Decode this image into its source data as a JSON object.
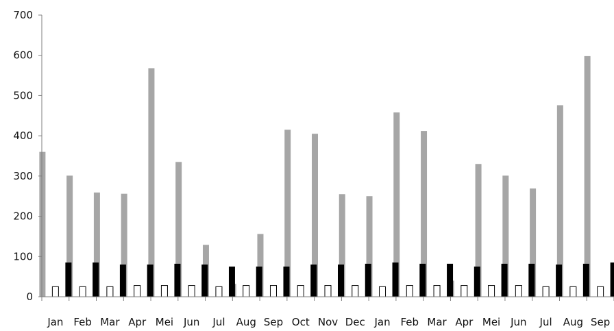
{
  "chart_data": {
    "type": "bar",
    "title": "",
    "xlabel": "",
    "ylabel": "",
    "ylim": [
      0,
      700
    ],
    "yticks": [
      0,
      100,
      200,
      300,
      400,
      500,
      600,
      700
    ],
    "grid": false,
    "legend": "none",
    "categories": [
      "Jan",
      "Feb",
      "Mar",
      "Apr",
      "Mei",
      "Jun",
      "Jul",
      "Aug",
      "Sep",
      "Oct",
      "Nov",
      "Dec",
      "Jan",
      "Feb",
      "Mar",
      "Apr",
      "Mei",
      "Jun",
      "Jul",
      "Aug",
      "Sep"
    ],
    "series": [
      {
        "color": "#a6a6a6",
        "style": "solid",
        "values": [
          360,
          301,
          259,
          256,
          568,
          335,
          129,
          32,
          156,
          415,
          405,
          255,
          250,
          458,
          412,
          40,
          330,
          301,
          269,
          476,
          598
        ]
      },
      {
        "color": "#ffffff",
        "style": "outlined",
        "values": [
          25,
          25,
          25,
          28,
          28,
          28,
          25,
          28,
          28,
          28,
          28,
          28,
          25,
          28,
          28,
          28,
          28,
          28,
          25,
          25,
          25
        ]
      },
      {
        "color": "#000000",
        "style": "solid",
        "values": [
          85,
          85,
          80,
          80,
          82,
          80,
          75,
          75,
          75,
          80,
          80,
          82,
          85,
          82,
          82,
          75,
          82,
          82,
          80,
          82,
          85
        ]
      }
    ]
  }
}
